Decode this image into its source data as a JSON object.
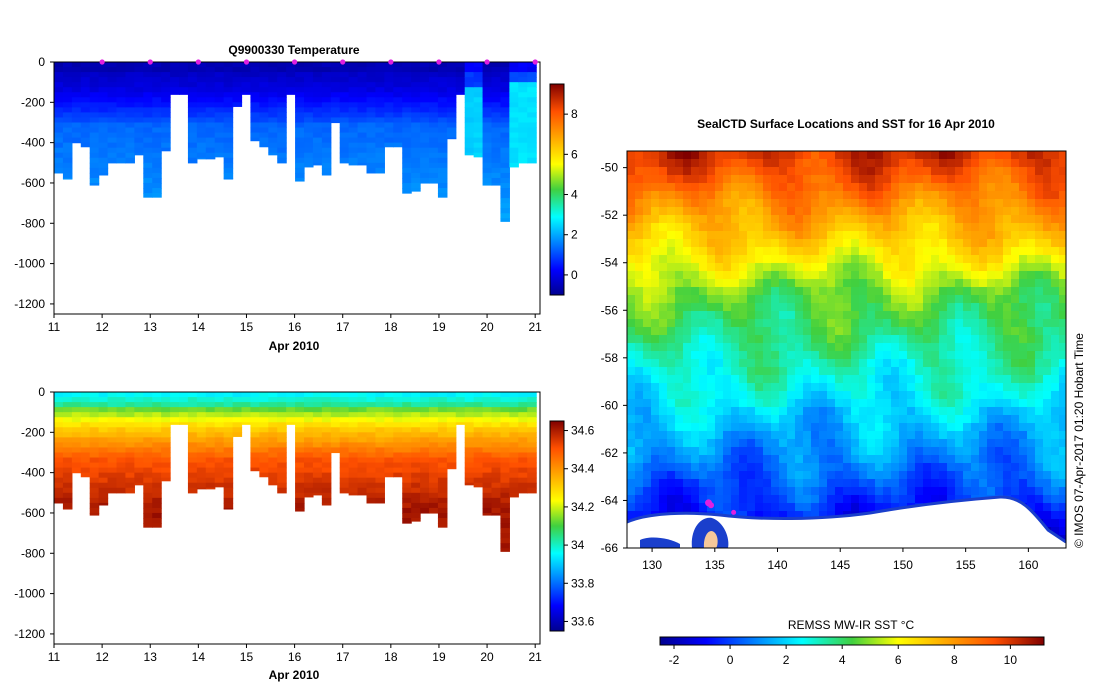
{
  "chart_data": [
    {
      "type": "heatmap",
      "id": "temperature",
      "title": "Q9900330  Temperature",
      "xlabel": "Apr 2010",
      "ylabel": "",
      "xlim": [
        11,
        21.1
      ],
      "ylim": [
        -1250,
        0
      ],
      "x_ticks": [
        "11",
        "12",
        "13",
        "14",
        "15",
        "16",
        "17",
        "18",
        "19",
        "20",
        "21"
      ],
      "y_ticks": [
        "0",
        "-200",
        "-400",
        "-600",
        "-800",
        "-1000",
        "-1200"
      ],
      "colorbar": {
        "range": [
          -1,
          9.5
        ],
        "ticks": [
          "8",
          "6",
          "4",
          "2",
          "0"
        ]
      },
      "surface_markers": [
        12,
        13,
        14,
        15,
        16,
        17,
        18,
        19,
        20,
        21
      ],
      "profile_max_depths": [
        550,
        580,
        400,
        420,
        610,
        560,
        500,
        500,
        500,
        460,
        670,
        670,
        440,
        160,
        160,
        500,
        480,
        480,
        470,
        580,
        220,
        160,
        390,
        420,
        460,
        500,
        160,
        590,
        520,
        510,
        560,
        300,
        500,
        510,
        510,
        550,
        550,
        420,
        420,
        650,
        640,
        600,
        600,
        670,
        380,
        160,
        460,
        470,
        610,
        610,
        790,
        520,
        500,
        500
      ]
    },
    {
      "type": "heatmap",
      "id": "salinity",
      "title": "",
      "xlabel": "Apr 2010",
      "ylabel": "",
      "xlim": [
        11,
        21.1
      ],
      "ylim": [
        -1250,
        0
      ],
      "x_ticks": [
        "11",
        "12",
        "13",
        "14",
        "15",
        "16",
        "17",
        "18",
        "19",
        "20",
        "21"
      ],
      "y_ticks": [
        "0",
        "-200",
        "-400",
        "-600",
        "-800",
        "-1000",
        "-1200"
      ],
      "colorbar": {
        "range": [
          33.55,
          34.65
        ],
        "ticks": [
          "34.6",
          "34.4",
          "34.2",
          "34",
          "33.8",
          "33.6"
        ]
      }
    },
    {
      "type": "heatmap",
      "id": "sst_map",
      "title": "SealCTD Surface Locations and SST for 16 Apr 2010",
      "xlabel": "",
      "ylabel": "",
      "xlim": [
        128,
        163
      ],
      "ylim": [
        -66,
        -49.3
      ],
      "x_ticks": [
        "130",
        "135",
        "140",
        "145",
        "150",
        "155",
        "160"
      ],
      "y_ticks": [
        "-50",
        "-52",
        "-54",
        "-56",
        "-58",
        "-60",
        "-62",
        "-64",
        "-66"
      ],
      "colorbar": {
        "label": "REMSS MW-IR SST °C",
        "range": [
          -2.5,
          11.2
        ],
        "ticks": [
          "-2",
          "0",
          "2",
          "4",
          "6",
          "8",
          "10"
        ]
      },
      "credit": "© IMOS 07-Apr-2017 01:20 Hobart Time"
    }
  ]
}
